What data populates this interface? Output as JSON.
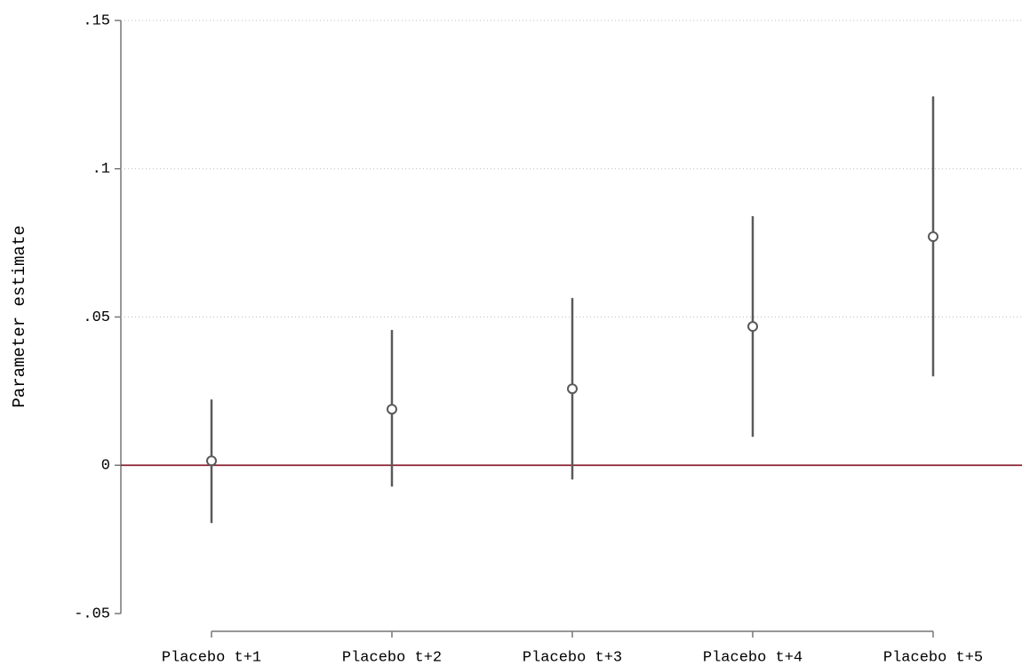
{
  "chart_data": {
    "type": "coefplot",
    "y_label": "Parameter estimate",
    "categories": [
      "Placebo t+1",
      "Placebo t+2",
      "Placebo t+3",
      "Placebo t+4",
      "Placebo t+5"
    ],
    "values": [
      0.0015,
      0.0189,
      0.0258,
      0.0468,
      0.0771
    ],
    "lower": [
      -0.0195,
      -0.0072,
      -0.0048,
      0.0096,
      0.03
    ],
    "upper": [
      0.0222,
      0.0456,
      0.0564,
      0.084,
      0.1244
    ],
    "color": "#5a5a5a",
    "ylim": [
      -0.05,
      0.15
    ],
    "yticks": [
      {
        "value": -0.05,
        "label": "-.05"
      },
      0,
      {
        "value": 0.05,
        "label": ".05"
      },
      {
        "value": 0.1,
        "label": ".1"
      },
      {
        "value": 0.15,
        "label": ".15"
      }
    ],
    "grid": true,
    "reference_line": 0,
    "reference_color": "#8b2232"
  }
}
